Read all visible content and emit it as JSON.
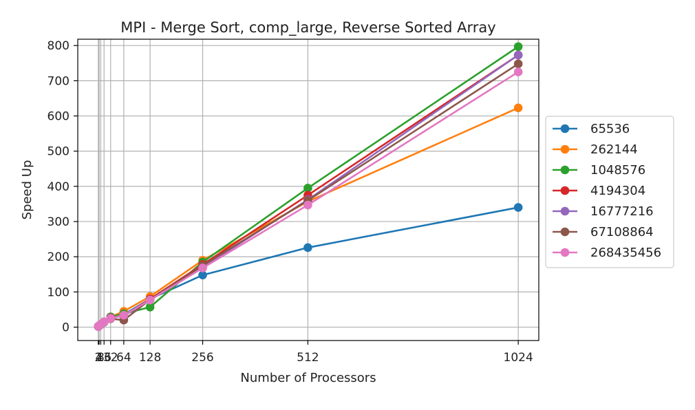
{
  "chart_data": {
    "type": "line",
    "title": "MPI - Merge Sort, comp_large, Reverse Sorted Array",
    "xlabel": "Number of Processors",
    "ylabel": "Speed Up",
    "x": [
      2,
      4,
      8,
      16,
      32,
      64,
      128,
      256,
      512,
      1024
    ],
    "x_tick_labels": [
      "2",
      "4",
      "8",
      "16",
      "32",
      "64",
      "128",
      "256",
      "512",
      "1024"
    ],
    "xlim": [
      -48,
      1074
    ],
    "ylim": [
      -38,
      818
    ],
    "y_ticks": [
      0,
      100,
      200,
      300,
      400,
      500,
      600,
      700,
      800
    ],
    "grid": true,
    "marker": "circle",
    "legend_position": "outside-right",
    "series": [
      {
        "name": "65536",
        "color": "#1f77b4",
        "values": [
          1.9,
          3.7,
          7.3,
          14,
          27,
          36,
          80,
          148,
          226,
          340
        ]
      },
      {
        "name": "262144",
        "color": "#ff7f0e",
        "values": [
          1.9,
          3.8,
          7.5,
          15,
          29,
          45,
          87,
          190,
          357,
          623
        ]
      },
      {
        "name": "1048576",
        "color": "#2ca02c",
        "values": [
          1.9,
          3.8,
          7.6,
          15,
          29,
          38,
          57,
          185,
          395,
          797
        ]
      },
      {
        "name": "4194304",
        "color": "#d62728",
        "values": [
          1.9,
          3.8,
          7.6,
          15,
          27,
          32,
          80,
          178,
          375,
          773
        ]
      },
      {
        "name": "16777216",
        "color": "#9467bd",
        "values": [
          1.9,
          3.8,
          7.6,
          15,
          26,
          32,
          78,
          170,
          362,
          773
        ]
      },
      {
        "name": "67108864",
        "color": "#8c564b",
        "values": [
          1.9,
          3.8,
          7.6,
          15,
          24,
          20,
          78,
          175,
          360,
          748
        ]
      },
      {
        "name": "268435456",
        "color": "#e377c2",
        "values": [
          1.9,
          3.8,
          7.6,
          15,
          25,
          34,
          77,
          168,
          347,
          725
        ]
      }
    ]
  }
}
